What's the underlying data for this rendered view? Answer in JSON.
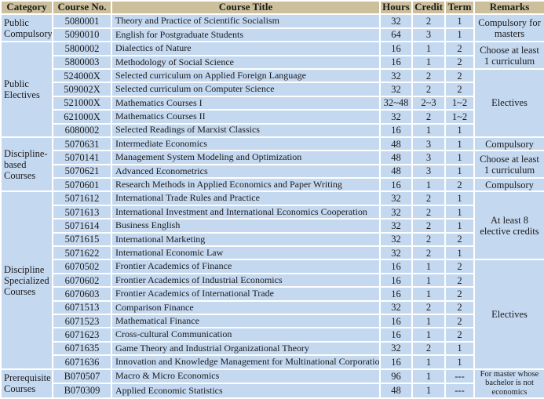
{
  "colors": {
    "header_bg": "#CBBF9C",
    "row_bg": "#C4D8F0",
    "border": "#FFFFFF",
    "text": "#1B1B1B"
  },
  "header": {
    "category": "Category",
    "course_no": "Course No.",
    "course_title": "Course Title",
    "hours": "Hours",
    "credit": "Credit",
    "term": "Term",
    "remarks": "Remarks"
  },
  "sections": [
    {
      "category": "Public Compulsory",
      "rows": [
        {
          "no": "5080001",
          "title": "Theory and Practice of Scientific Socialism",
          "hours": "32",
          "credit": "2",
          "term": "1"
        },
        {
          "no": "5090010",
          "title": "English for Postgraduate Students",
          "hours": "64",
          "credit": "3",
          "term": "1"
        }
      ],
      "remark_groups": [
        {
          "text": "Compulsory for masters",
          "span": 2
        }
      ]
    },
    {
      "category": "Public Electives",
      "rows": [
        {
          "no": "5800002",
          "title": "Dialectics of Nature",
          "hours": "16",
          "credit": "1",
          "term": "2"
        },
        {
          "no": "5800003",
          "title": "Methodology of Social Science",
          "hours": "16",
          "credit": "1",
          "term": "2"
        },
        {
          "no": "524000X",
          "title": "Selected curriculum on Applied Foreign Language",
          "hours": "32",
          "credit": "2",
          "term": "2"
        },
        {
          "no": "509002X",
          "title": "Selected curriculum on Computer Science",
          "hours": "32",
          "credit": "2",
          "term": "2"
        },
        {
          "no": "521000X",
          "title": "Mathematics Courses  I",
          "hours": "32~48",
          "credit": "2~3",
          "term": "1~2"
        },
        {
          "no": "621000X",
          "title": "Mathematics Courses II",
          "hours": "32",
          "credit": "2",
          "term": "1~2"
        },
        {
          "no": "6080002",
          "title": "Selected Readings of Marxist Classics",
          "hours": "16",
          "credit": "1",
          "term": "1"
        }
      ],
      "remark_groups": [
        {
          "text": "Choose at least 1 curriculum",
          "span": 2
        },
        {
          "text": "Electives",
          "span": 5
        }
      ]
    },
    {
      "category": "Discipline-based Courses",
      "rows": [
        {
          "no": "5070631",
          "title": "Intermediate Economics",
          "hours": "48",
          "credit": "3",
          "term": "1"
        },
        {
          "no": "5070141",
          "title": "Management System Modeling and Optimization",
          "hours": "48",
          "credit": "3",
          "term": "1"
        },
        {
          "no": "5070621",
          "title": "Advanced Econometrics",
          "hours": "48",
          "credit": "3",
          "term": "1"
        },
        {
          "no": "5070601",
          "title": "Research Methods in Applied Economics and Paper Writing",
          "hours": "16",
          "credit": "1",
          "term": "2"
        }
      ],
      "remark_groups": [
        {
          "text": "Compulsory",
          "span": 1
        },
        {
          "text": "Choose at least 1 curriculum",
          "span": 2
        },
        {
          "text": "Compulsory",
          "span": 1
        }
      ]
    },
    {
      "category": "Discipline Specialized Courses",
      "rows": [
        {
          "no": "5071612",
          "title": "International Trade Rules and Practice",
          "hours": "32",
          "credit": "2",
          "term": "1"
        },
        {
          "no": "5071613",
          "title": "International Investment and International Economics Cooperation",
          "hours": "32",
          "credit": "2",
          "term": "1"
        },
        {
          "no": "5071614",
          "title": "Business English",
          "hours": "32",
          "credit": "2",
          "term": "1"
        },
        {
          "no": "5071615",
          "title": "International Marketing",
          "hours": "32",
          "credit": "2",
          "term": "2"
        },
        {
          "no": "5071622",
          "title": "International Economic Law",
          "hours": "32",
          "credit": "2",
          "term": "1"
        },
        {
          "no": "6070502",
          "title": "Frontier Academics  of Finance",
          "hours": "16",
          "credit": "1",
          "term": "2"
        },
        {
          "no": "6070602",
          "title": "Frontier Academics  of Industrial Economics",
          "hours": "16",
          "credit": "1",
          "term": "2"
        },
        {
          "no": "6070603",
          "title": "Frontier Academics  of International Trade",
          "hours": "16",
          "credit": "1",
          "term": "2"
        },
        {
          "no": "6071513",
          "title": "Comparison Finance",
          "hours": "32",
          "credit": "2",
          "term": "2"
        },
        {
          "no": "6071523",
          "title": "Mathematical Finance",
          "hours": "16",
          "credit": "1",
          "term": "2"
        },
        {
          "no": "6071623",
          "title": "Cross-cultural Communication",
          "hours": "16",
          "credit": "1",
          "term": "2"
        },
        {
          "no": "6071635",
          "title": "Game Theory and Industrial Organizational Theory",
          "hours": "32",
          "credit": "2",
          "term": "1"
        },
        {
          "no": "6071636",
          "title": "Innovation and Knowledge Management for Multinational Corporation",
          "hours": "16",
          "credit": "1",
          "term": "1"
        }
      ],
      "remark_groups": [
        {
          "text": "At least 8 elective credits",
          "span": 5
        },
        {
          "text": "Electives",
          "span": 8
        }
      ]
    },
    {
      "category": "Prerequisite Courses",
      "rows": [
        {
          "no": "B070507",
          "title": "Macro & Micro Economics",
          "hours": "96",
          "credit": "1",
          "term": "---"
        },
        {
          "no": "B070309",
          "title": "Applied Economic Statistics",
          "hours": "48",
          "credit": "1",
          "term": "---"
        }
      ],
      "remark_groups": [
        {
          "text": "For master whose bachelor is not economics",
          "span": 2
        }
      ]
    }
  ]
}
